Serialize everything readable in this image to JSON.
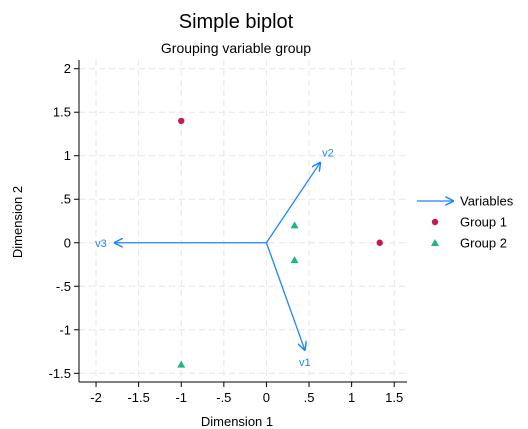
{
  "chart_data": {
    "type": "scatter",
    "title": "Simple biplot",
    "subtitle": "Grouping variable group",
    "xlabel": "Dimension 1",
    "ylabel": "Dimension 2",
    "xlim": [
      -2.2,
      1.65
    ],
    "ylim": [
      -1.6,
      2.1
    ],
    "x_ticks": [
      -2,
      -1.5,
      -1,
      -0.5,
      0,
      0.5,
      1,
      1.5
    ],
    "x_tick_labels": [
      "-2",
      "-1.5",
      "-1",
      "-.5",
      "0",
      ".5",
      "1",
      "1.5"
    ],
    "y_ticks": [
      2,
      1.5,
      1,
      0.5,
      0,
      -0.5,
      -1,
      -1.5
    ],
    "y_tick_labels": [
      "2",
      "1.5",
      "1",
      ".5",
      "0",
      "-.5",
      "-1",
      "-1.5"
    ],
    "grid": true,
    "legend_position": "right",
    "vectors": {
      "name": "Variables",
      "color": "#1a85ff",
      "items": [
        {
          "label": "v1",
          "x": 0.45,
          "y": -1.23
        },
        {
          "label": "v2",
          "x": 0.63,
          "y": 0.92
        },
        {
          "label": "v3",
          "x": -1.78,
          "y": 0.0
        }
      ]
    },
    "series": [
      {
        "name": "Group 1",
        "marker": "circle",
        "color": "#c8194e",
        "points": [
          {
            "x": -1.0,
            "y": 1.4
          },
          {
            "x": 1.33,
            "y": 0.0
          }
        ]
      },
      {
        "name": "Group 2",
        "marker": "triangle",
        "color": "#1db486",
        "points": [
          {
            "x": 0.33,
            "y": 0.2
          },
          {
            "x": 0.33,
            "y": -0.2
          },
          {
            "x": -1.0,
            "y": -1.4
          }
        ]
      }
    ]
  }
}
